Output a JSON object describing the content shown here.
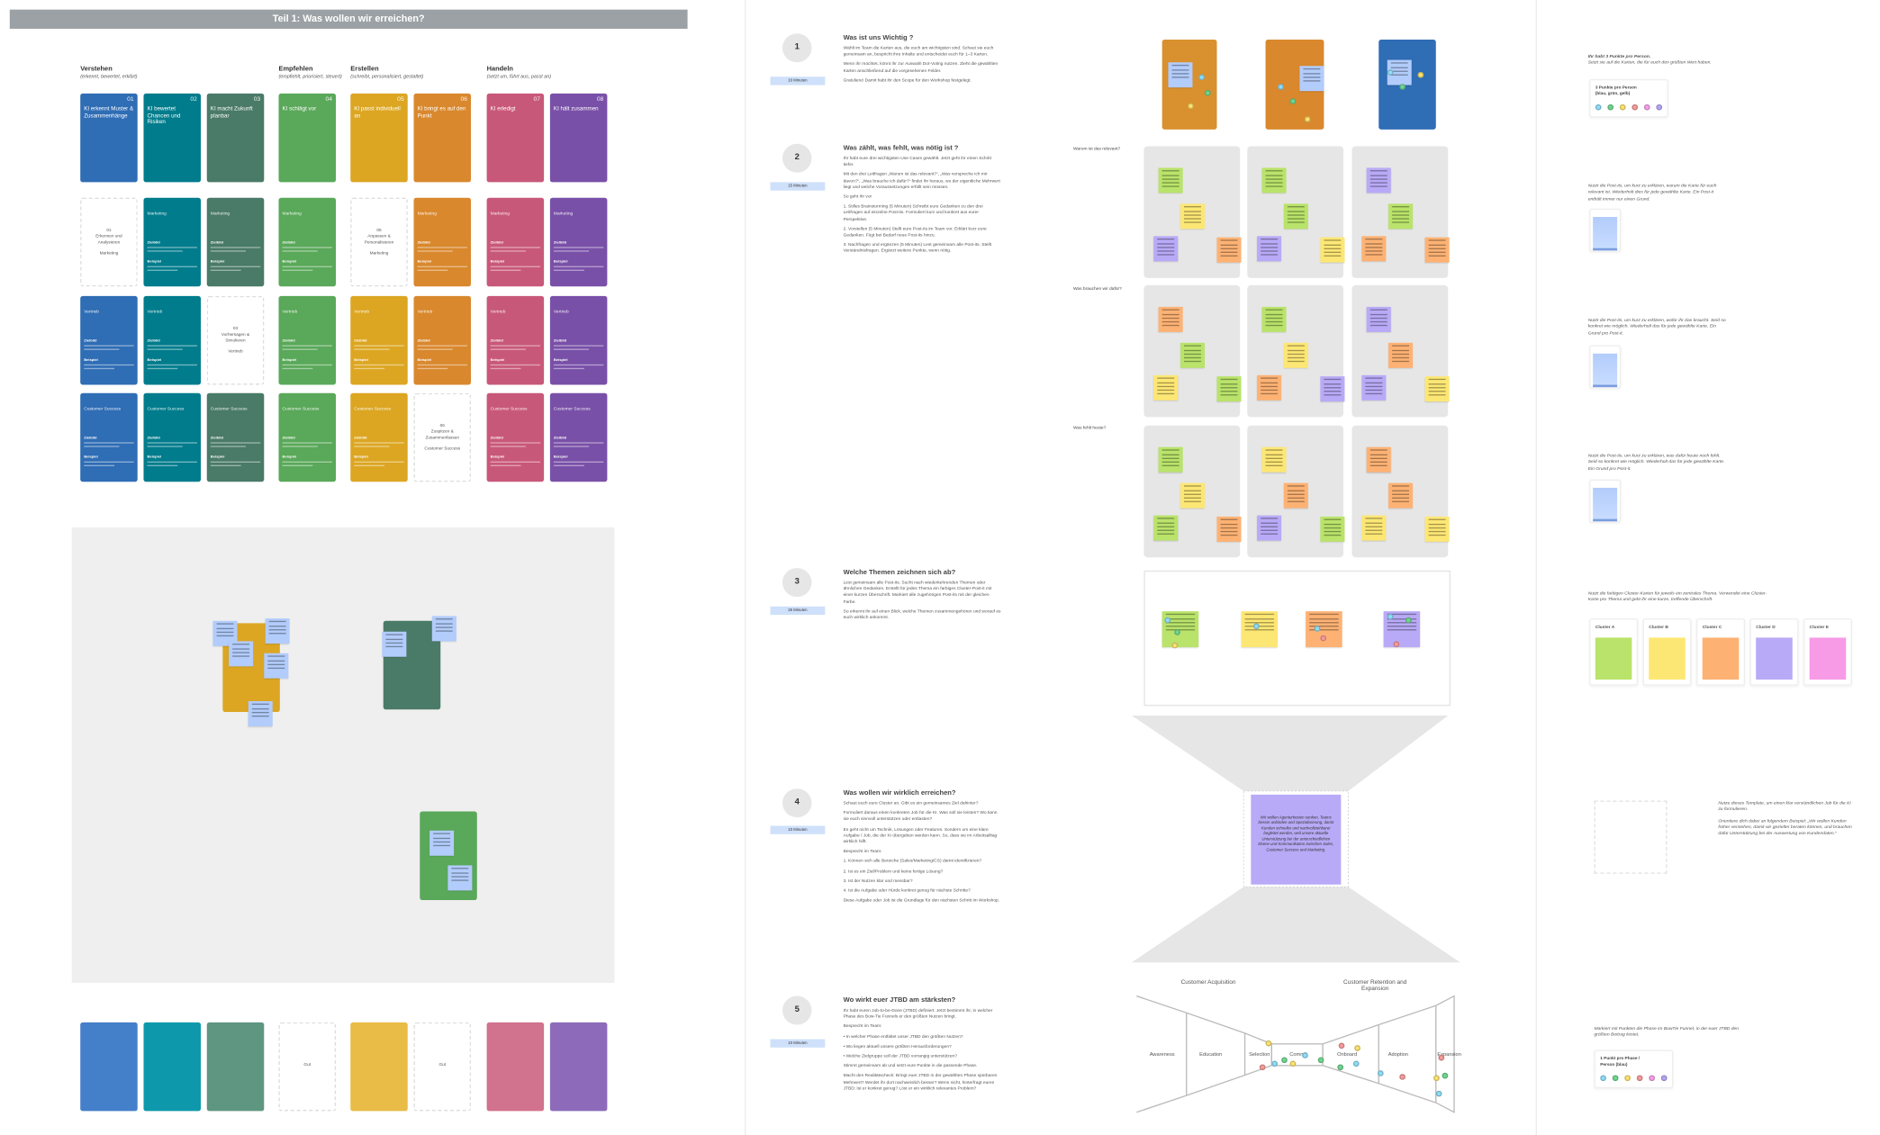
{
  "section_title": "Teil 1: Was wollen wir erreichen?",
  "groups": [
    {
      "label": "Verstehen",
      "sub": "(erkennt, bewertet, erklärt)"
    },
    {
      "label": "Empfehlen",
      "sub": "(empfiehlt, priorisiert, steuert)"
    },
    {
      "label": "Erstellen",
      "sub": "(schreibt, personalisiert, gestaltet)"
    },
    {
      "label": "Handeln",
      "sub": "(setzt um, führt aus, passt an)"
    }
  ],
  "columns": [
    {
      "num": "01",
      "title": "KI erkennt Muster & Zusammenhänge",
      "color": "#2f6db5",
      "light": "#3a78c7"
    },
    {
      "num": "02",
      "title": "KI bewertet Chancen und Risiken",
      "color": "#007c8c",
      "light": "#0094a6"
    },
    {
      "num": "03",
      "title": "KI macht Zukunft planbar",
      "color": "#4a7a68",
      "light": "#56907a"
    },
    {
      "num": "04",
      "title": "KI schlägt vor",
      "color": "#5aa85a",
      "light": "#e0e0e0"
    },
    {
      "num": "05",
      "title": "KI passt individuell an",
      "color": "#dca623",
      "light": "#e7b83c"
    },
    {
      "num": "06",
      "title": "KI bringt es auf den Punkt",
      "color": "#d9882d",
      "light": "#e0e0e0"
    },
    {
      "num": "07",
      "title": "KI erledigt",
      "color": "#c8587a",
      "light": "#cf6a88"
    },
    {
      "num": "08",
      "title": "KI hält zusammen",
      "color": "#7950a8",
      "light": "#8763b6"
    }
  ],
  "departments": [
    "Marketing",
    "Vertrieb",
    "Customer Success"
  ],
  "card_labels": {
    "goal": "Zielbild",
    "example": "Beispiel"
  },
  "placeholders": [
    {
      "row": 0,
      "col": 0,
      "num": "01",
      "name": "Erkennen und Analysieren",
      "dept": "Marketing"
    },
    {
      "row": 0,
      "col": 4,
      "num": "05",
      "name": "Anpassen & Personalisieren",
      "dept": "Marketing"
    },
    {
      "row": 1,
      "col": 2,
      "num": "03",
      "name": "Vorhersagen & Simulieren",
      "dept": "Vertrieb"
    },
    {
      "row": 2,
      "col": 5,
      "num": "06",
      "name": "Zuspitzen & Zusammenfassen",
      "dept": "Customer Success"
    }
  ],
  "bottom_placeholder_label": "Gut",
  "steps": [
    {
      "num": "1",
      "time": "10 Minuten",
      "title": "Was ist uns Wichtig ?",
      "paras": [
        "Wählt im Team die Karten aus, die euch am wichtigsten sind. Schaut sie euch gemeinsam an, bespricht ihre Inhalte und entscheidet euch für 1–3 Karten.",
        "Wenn ihr möchtet, könnt ihr zur Auswahl Dot-Voting nutzen. Zieht die gewählten Karten anschließend auf die vorgesehenen Felder.",
        "Gratuliere! Damit habt ihr den Scope für den Workshop festgelegt."
      ]
    },
    {
      "num": "2",
      "time": "15 Minuten",
      "title": "Was zählt, was fehlt, was nötig ist ?",
      "paras": [
        "Ihr habt eure drei wichtigsten Use Cases gewählt. Jetzt geht ihr einen Schritt tiefer.",
        "Mit den drei Leitfragen „Warum ist das relevant?“, „Was verspreche ich mir davon?“, „Was brauche ich dafür?“ findet ihr heraus, wo der eigentliche Mehrwert liegt und welche Voraussetzungen erfüllt sein müssen.",
        "So geht ihr vor",
        "1. Stilles Brainstorming (5 Minuten) Schreibt eure Gedanken zu den drei Leitfragen auf einzelne Post-its. Formuliert kurz und konkret aus eurer Perspektive.",
        "2. Vorstellen (5 Minuten) Stellt eure Post-its im Team vor. Erklärt kurz eure Gedanken. Fügt bei Bedarf neue Post-its hinzu.",
        "3. Nachfragen und ergänzen (5 Minuten) Lest gemeinsam alle Post-its. Stellt Verständnisfragen. Ergänzt weitere Punkte, wenn nötig."
      ]
    },
    {
      "num": "3",
      "time": "25 Minuten",
      "title": "Welche Themen zeichnen sich ab?",
      "paras": [
        "Lest gemeinsam alle Post-its. Sucht nach wiederkehrenden Themen oder ähnlichen Gedanken. Erstellt für jedes Thema ein farbiges Cluster-Post-it mit einer kurzen Überschrift. Markiert alle zugehörigen Post-its mit der gleichen Farbe.",
        "So erkennt ihr auf einen Blick, welche Themen zusammengehören und worauf es euch wirklich ankommt."
      ]
    },
    {
      "num": "4",
      "time": "10 Minuten",
      "title": "Was wollen wir wirklich erreichen?",
      "paras": [
        "Schaut euch eure Cluster an. Gibt es ein gemeinsames Ziel dahinter?",
        "Formuliert daraus einen konkreten Job für die KI. Was soll sie leisten? Wo kann sie euch sinnvoll unterstützen oder entlasten?",
        "Es geht nicht um Technik, Lösungen oder Features. Sondern um eine klare Aufgabe / Job, die der KI übergeben werden kann. So, dass sie im Arbeitsalltag wirklich hilft.",
        "Besprecht im Team:",
        "1. Können sich alle Bereiche (Sales/Marketing/CS) damit identifizieren?",
        "2. Ist es ein Ziel/Problem und keine fertige Lösung?",
        "3. Ist der Nutzen klar und messbar?",
        "4. Ist die Aufgabe oder Hürde konkret genug für nächste Schritte?",
        "Diese Aufgabe oder Job ist die Grundlage für den nächsten Schritt im Workshop."
      ]
    },
    {
      "num": "5",
      "time": "10 Minuten",
      "title": "Wo wirkt euer JTBD am stärksten?",
      "paras": [
        "Ihr habt euren Job-to-be-Done (JTBD) definiert. Jetzt bestimmt ihr, in welcher Phase des Bow-Tie Funnels er den größten Nutzen bringt.",
        "Besprecht im Team:",
        "• In welcher Phase entfaltet unser JTBD den größten Nutzen?",
        "• Wo liegen aktuell unsere größten Herausforderungen?",
        "• Welche Zielgruppe soll der JTBD vorrangig unterstützen?",
        "Stimmt gemeinsam ab und setzt eure Punkte in die passende Phase.",
        "Macht den Realitätscheck: Bringt euer JTBD in der gewählten Phase spürbaren Mehrwert? Werdet ihr dort nachweislich besser? Wenn nicht, hinterfragt euren JTBD: Ist er konkret genug? Löst er ein wirklich relevantes Problem?"
      ]
    }
  ],
  "question_rows": [
    "Warum ist das relevant?",
    "Was brauchen wir dafür?",
    "Was fehlt heute?"
  ],
  "sticky_colors": {
    "green": "#b9e36a",
    "yellow": "#fde774",
    "orange": "#fdb274",
    "purple": "#b9aaf7",
    "blue": "#b2ccfb",
    "pink": "#f79be6"
  },
  "grid_notes": [
    [
      "green",
      "yellow",
      "purple",
      "orange"
    ],
    [
      "green",
      "purple",
      "yellow",
      "green"
    ],
    [
      "orange",
      "orange",
      "purple",
      "green"
    ],
    [
      "green",
      "orange",
      "green",
      "yellow"
    ],
    [
      "green",
      "yellow",
      "orange",
      "purple"
    ],
    [
      "orange",
      "purple",
      "yellow",
      "purple"
    ],
    [
      "green",
      "orange",
      "green",
      "yellow"
    ],
    [
      "green",
      "yellow",
      "orange",
      "purple"
    ],
    [
      "orange",
      "orange",
      "yellow",
      "yellow"
    ]
  ],
  "cluster_notes": [
    "green",
    "yellow",
    "orange",
    "purple"
  ],
  "jtbd_note": "Wir wollen Agenturkosten senken, Teams besser anbinden und Spezialisierung, damit Kunden schneller und nachvollziehbarer begleitet werden, weil unsere aktuelle Unterstützung bei der unterschiedlichen Ebene und Kommunikation zwischen Sales, Customer Success und Marketing.",
  "bowtie": {
    "left_title": "Customer Acquisition",
    "right_title": "Customer Retention and Expansion",
    "phases": [
      "Awareness",
      "Education",
      "Selection",
      "Commit",
      "Onboard",
      "Adoption",
      "Expansion"
    ]
  },
  "dot_colors": [
    "#8fdcf7",
    "#6fd68f",
    "#fde26f",
    "#f79a9a",
    "#f7a0e6",
    "#b7a6f5"
  ],
  "right_notes": {
    "vote_title": "Ihr habt 3 Punkte pro Person.",
    "vote_text": "Setzt sie auf die Karten, die für euch den größten Wert haben.",
    "vote_box": "3 Punkte pro Person (blau, grün, gelb)",
    "relevant": "Nutzt die Post-its, um kurz zu erklären, warum die Karte für euch relevant ist. Wiederholt dies für jede gewählte Karte. Ein Post-it enthält immer nur einen Grund.",
    "need": "Nutzt die Post-its, um kurz zu erklären, wofür ihr das braucht. Seid so konkret wie möglich. Wiederholt das für jede gewählte Karte. Ein Grund pro Post-it.",
    "missing": "Nutzt die Post-its, um kurz zu erklären, was dafür heute noch fehlt. Seid so konkret wie möglich. Wiederholt das für jede gewählte Karte. Ein Grund pro Post-it.",
    "cluster": "Nutzt die farbigen Cluster-Karten für jeweils ein zentrales Thema. Verwendet eine Cluster-Karte pro Thema und gebt ihr eine kurze, treffende Überschrift.",
    "clusters": [
      "Cluster A",
      "Cluster B",
      "Cluster C",
      "Cluster D",
      "Cluster E"
    ],
    "template_1": "Nutze dieses Template, um einen klar verständlichen Job für die KI zu formulieren.",
    "template_2": "Orientiere dich dabei an folgendem Beispiel: „Wir wollen Kunden früher verstehen, damit wir gezielter beraten können, und brauchen dafür Unterstützung bei der Auswertung von Kundendaten.“",
    "bowtie_text": "Markiert mit Punkten die Phase im BowTie Funnel, in der euer JTBD den größten Beitrag leistet.",
    "bowtie_box": "1 Punkt pro Phase / Person (blau)"
  }
}
